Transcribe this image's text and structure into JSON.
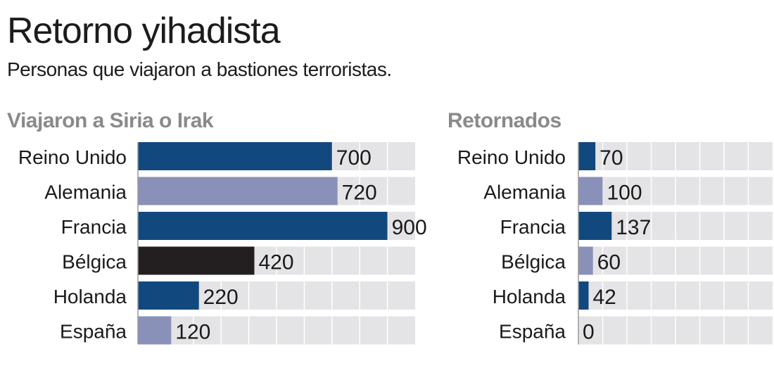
{
  "title": "Retorno yihadista",
  "subtitle": "Personas que viajaron a bastiones terroristas.",
  "colors": {
    "dark_blue": "#11497f",
    "light_blue": "#8a91b8",
    "black": "#231f20",
    "track": "#e4e4e6"
  },
  "chart_data": [
    {
      "type": "bar",
      "orientation": "horizontal",
      "title": "Viajaron a Siria o Irak",
      "categories": [
        "Reino Unido",
        "Alemania",
        "Francia",
        "Bélgica",
        "Holanda",
        "España"
      ],
      "values": [
        700,
        720,
        900,
        420,
        220,
        120
      ],
      "value_labels": [
        "700",
        "720",
        "900",
        "420",
        "220",
        "120"
      ],
      "bar_colors": [
        "#11497f",
        "#8a91b8",
        "#11497f",
        "#231f20",
        "#11497f",
        "#8a91b8"
      ],
      "xlim": [
        0,
        1000
      ],
      "grid": true
    },
    {
      "type": "bar",
      "orientation": "horizontal",
      "title": "Retornados",
      "categories": [
        "Reino Unido",
        "Alemania",
        "Francia",
        "Bélgica",
        "Holanda",
        "España"
      ],
      "values": [
        70,
        100,
        137,
        60,
        42,
        0
      ],
      "value_labels": [
        "70",
        "100",
        "137",
        "60",
        "42",
        "0"
      ],
      "bar_colors": [
        "#11497f",
        "#8a91b8",
        "#11497f",
        "#8a91b8",
        "#11497f",
        "#8a91b8"
      ],
      "xlim": [
        0,
        800
      ],
      "grid": true
    }
  ]
}
